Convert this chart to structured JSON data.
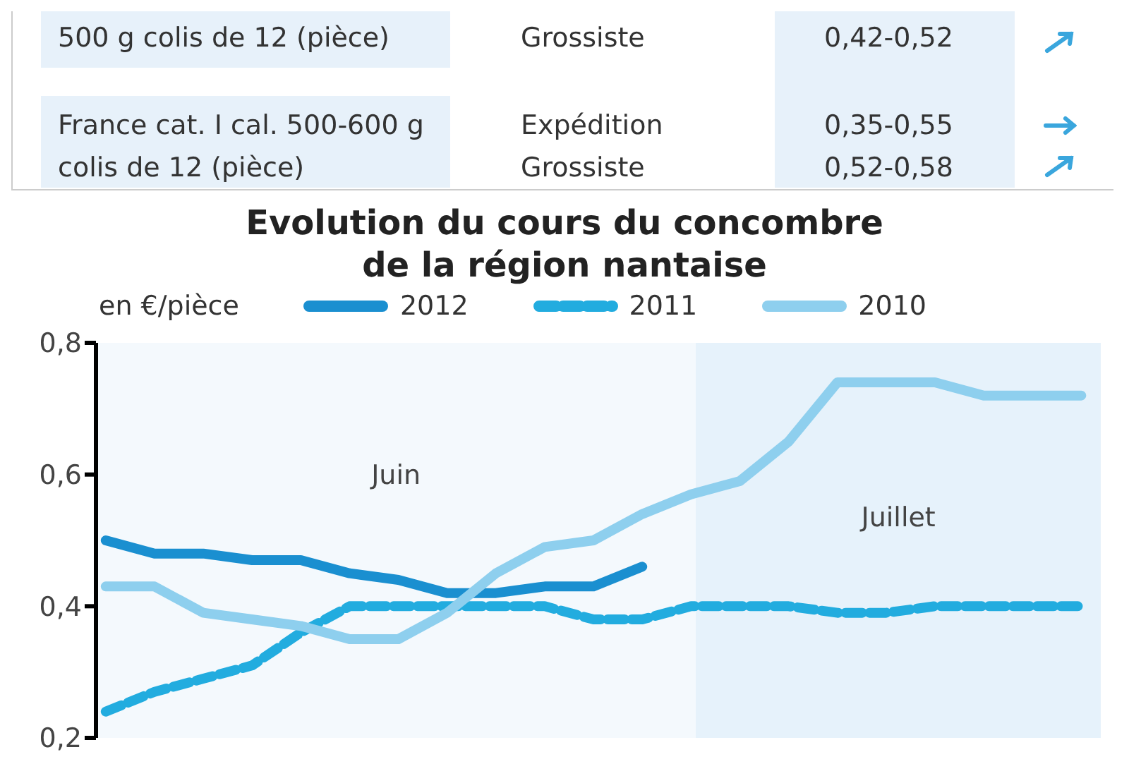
{
  "chart_data": {
    "type": "line",
    "title": "Evolution du cours du concombre\nde la région nantaise",
    "ylabel": "en €/pièce",
    "annotations": [
      "500 g colis de 12 (pièce)",
      "Grossiste",
      "0,42-0,52",
      "France cat. I cal. 500-600 g colis de 12 (pièce)",
      "Expédition",
      "0,35-0,55",
      "Grossiste",
      "0,52-0,58",
      "Juin",
      "Juillet"
    ],
    "categories": [
      null,
      null,
      null,
      null,
      null,
      null,
      null,
      null,
      null,
      null,
      null,
      null,
      null,
      null,
      null,
      null,
      null,
      null,
      null,
      null,
      null
    ],
    "tick_labels": "y",
    "series": [
      {
        "name": "2012",
        "color": "#1a8fd0",
        "line_style": "solid",
        "values": [
          0.5,
          0.48,
          0.48,
          0.47,
          0.47,
          0.45,
          0.44,
          0.42,
          0.42,
          0.43,
          0.43,
          0.46,
          null,
          null,
          null,
          null,
          null,
          null,
          null,
          null,
          null
        ]
      },
      {
        "name": "2011",
        "color": "#22acdf",
        "line_style": "dashed",
        "values": [
          0.24,
          0.27,
          0.29,
          0.31,
          0.36,
          0.4,
          0.4,
          0.4,
          0.4,
          0.4,
          0.38,
          0.38,
          0.4,
          0.4,
          0.4,
          0.39,
          0.39,
          0.4,
          0.4,
          0.4,
          0.4
        ]
      },
      {
        "name": "2010",
        "color": "#8ecfee",
        "line_style": "solid",
        "values": [
          0.43,
          0.43,
          0.39,
          0.38,
          0.37,
          0.35,
          0.35,
          0.39,
          0.45,
          0.49,
          0.5,
          0.54,
          0.57,
          0.59,
          0.65,
          0.74,
          0.74,
          0.74,
          0.72,
          0.72,
          0.72
        ]
      }
    ],
    "ylim": [
      0.2,
      0.8
    ],
    "yticks": [
      {
        "value": 0.2,
        "label": "0,2"
      },
      {
        "value": 0.4,
        "label": "0,4"
      },
      {
        "value": 0.6,
        "label": "0,6"
      },
      {
        "value": 0.8,
        "label": "0,8"
      }
    ],
    "legend": "top left",
    "grid": false,
    "marker": "none"
  }
}
